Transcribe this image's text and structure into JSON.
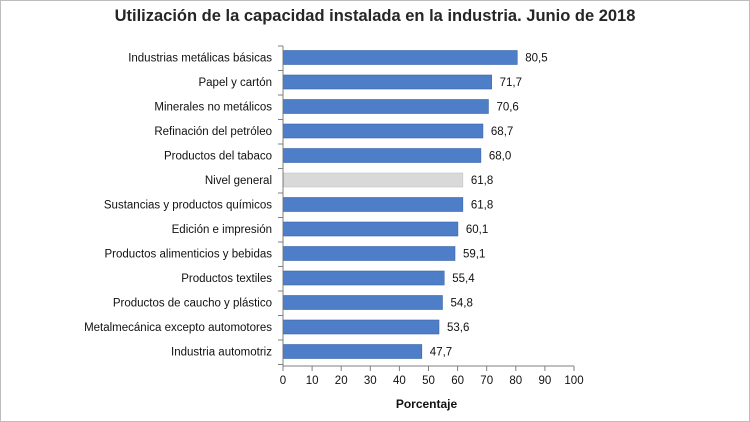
{
  "chart_data": {
    "type": "bar",
    "orientation": "horizontal",
    "title": "Utilización de la capacidad instalada en la industria. Junio de 2018",
    "xlabel": "Porcentaje",
    "ylabel": "",
    "xlim": [
      0,
      100
    ],
    "xticks": [
      "0",
      "10",
      "20",
      "30",
      "40",
      "50",
      "60",
      "70",
      "80",
      "90",
      "100"
    ],
    "grid": false,
    "legend": "none",
    "categories": [
      "Industrias metálicas básicas",
      "Papel y cartón",
      "Minerales no metálicos",
      "Refinación del petróleo",
      "Productos del tabaco",
      "Nivel general",
      "Sustancias y productos químicos",
      "Edición e impresión",
      "Productos alimenticios y bebidas",
      "Productos textiles",
      "Productos de caucho y plástico",
      "Metalmecánica excepto automotores",
      "Industria automotriz"
    ],
    "values": [
      80.5,
      71.7,
      70.6,
      68.7,
      68.0,
      61.8,
      61.8,
      60.1,
      59.1,
      55.4,
      54.8,
      53.6,
      47.7
    ],
    "value_labels": [
      "80,5",
      "71,7",
      "70,6",
      "68,7",
      "68,0",
      "61,8",
      "61,8",
      "60,1",
      "59,1",
      "55,4",
      "54,8",
      "53,6",
      "47,7"
    ],
    "highlight_category": "Nivel general",
    "colors": {
      "bar": "#4f7ec8",
      "bar_edge": "#3a64a8",
      "highlight": "#d9d9d9",
      "highlight_edge": "#c4c4c4",
      "axis": "#7f7f7f"
    }
  }
}
